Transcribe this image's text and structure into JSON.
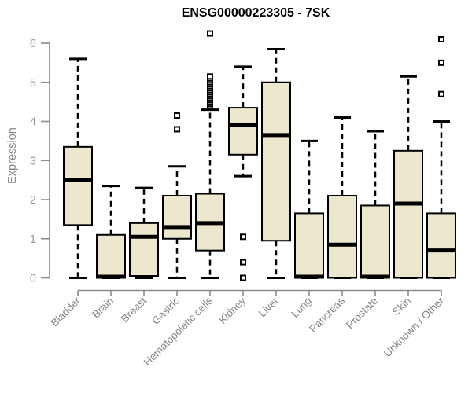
{
  "title": "ENSG00000223305 - 7SK",
  "colors": {
    "background": "#FFFFFF",
    "box_fill": "#EDE7CD",
    "box_border": "#000000",
    "median": "#000000",
    "whisker": "#000000",
    "axis": "#8B8B8B",
    "tick_label": "#969696",
    "category_label": "#858585",
    "title": "#000000"
  },
  "chart_data": {
    "type": "boxplot",
    "title": "ENSG00000223305 - 7SK",
    "ylabel": "Expression",
    "xlabel": "",
    "ylim": [
      0,
      6.3
    ],
    "yticks": [
      0,
      1,
      2,
      3,
      4,
      5,
      6
    ],
    "grid": false,
    "legend": null,
    "categories": [
      "Bladder",
      "Brain",
      "Breast",
      "Gastric",
      "Hematopoietic cells",
      "Kidney",
      "Liver",
      "Lung",
      "Pancreas",
      "Prostate",
      "Skin",
      "Unknown / Other"
    ],
    "series": [
      {
        "category": "Bladder",
        "whisker_low": 0.0,
        "q1": 1.35,
        "median": 2.5,
        "q3": 3.35,
        "whisker_high": 5.6,
        "outliers": []
      },
      {
        "category": "Brain",
        "whisker_low": 0.0,
        "q1": 0.0,
        "median": 0.03,
        "q3": 1.1,
        "whisker_high": 2.35,
        "outliers": []
      },
      {
        "category": "Breast",
        "whisker_low": 0.0,
        "q1": 0.05,
        "median": 1.05,
        "q3": 1.4,
        "whisker_high": 2.3,
        "outliers": []
      },
      {
        "category": "Gastric",
        "whisker_low": 0.0,
        "q1": 1.0,
        "median": 1.3,
        "q3": 2.1,
        "whisker_high": 2.85,
        "outliers": [
          3.8,
          4.15
        ]
      },
      {
        "category": "Hematopoietic cells",
        "whisker_low": 0.0,
        "q1": 0.7,
        "median": 1.4,
        "q3": 2.15,
        "whisker_high": 4.3,
        "outliers": [
          4.4,
          4.45,
          4.5,
          4.55,
          4.6,
          4.65,
          4.7,
          4.75,
          4.8,
          4.85,
          4.9,
          4.95,
          5.0,
          5.05,
          5.1,
          5.15,
          6.25
        ]
      },
      {
        "category": "Kidney",
        "whisker_low": 2.6,
        "q1": 3.15,
        "median": 3.9,
        "q3": 4.35,
        "whisker_high": 5.4,
        "outliers": [
          0.0,
          0.4,
          1.05
        ]
      },
      {
        "category": "Liver",
        "whisker_low": 0.0,
        "q1": 0.95,
        "median": 3.65,
        "q3": 5.0,
        "whisker_high": 5.85,
        "outliers": []
      },
      {
        "category": "Lung",
        "whisker_low": 0.0,
        "q1": 0.0,
        "median": 0.03,
        "q3": 1.65,
        "whisker_high": 3.5,
        "outliers": []
      },
      {
        "category": "Pancreas",
        "whisker_low": 0.0,
        "q1": 0.0,
        "median": 0.85,
        "q3": 2.1,
        "whisker_high": 4.1,
        "outliers": []
      },
      {
        "category": "Prostate",
        "whisker_low": 0.0,
        "q1": 0.0,
        "median": 0.03,
        "q3": 1.85,
        "whisker_high": 3.75,
        "outliers": []
      },
      {
        "category": "Skin",
        "whisker_low": 0.0,
        "q1": 0.0,
        "median": 1.9,
        "q3": 3.25,
        "whisker_high": 5.15,
        "outliers": []
      },
      {
        "category": "Unknown / Other",
        "whisker_low": 0.0,
        "q1": 0.0,
        "median": 0.7,
        "q3": 1.65,
        "whisker_high": 4.0,
        "outliers": [
          4.7,
          5.5,
          6.1
        ]
      }
    ]
  }
}
